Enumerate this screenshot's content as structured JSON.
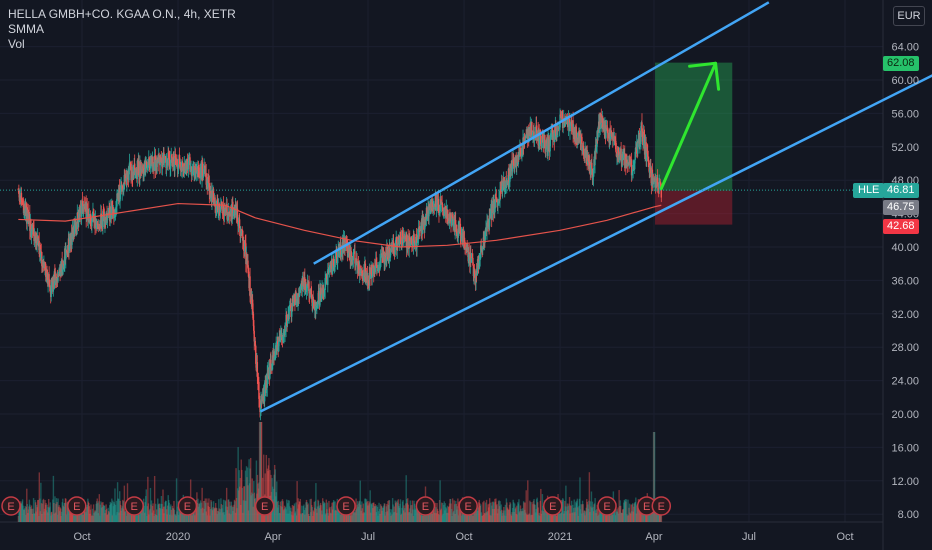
{
  "header": {
    "title": "HELLA GMBH+CO. KGAA O.N., 4h, XETR",
    "indicator_1": "SMMA",
    "indicator_2": "Vol",
    "currency": "EUR"
  },
  "price_tags": {
    "target": "62.08",
    "symbol": "HLE",
    "last": "46.81",
    "entry": "46.75",
    "stop": "42.68"
  },
  "colors": {
    "background": "#131722",
    "up": "#26a69a",
    "down": "#ef5350",
    "channel": "#42a5f5",
    "smma": "#e5534b",
    "arrow": "#2fe62f",
    "target_tag": "#26c26a",
    "stop_tag": "#f23645",
    "entry_tag": "#787b86"
  },
  "earnings_icon_label": "E",
  "chart_data": {
    "type": "candlestick",
    "title": "HELLA GMBH+CO. KGAA O.N., 4h, XETR",
    "ylabel": "EUR",
    "ylim": [
      6,
      70
    ],
    "y_ticks": [
      8,
      12,
      16,
      20,
      24,
      28,
      32,
      36,
      40,
      44,
      48,
      52,
      56,
      60,
      64
    ],
    "y_tick_labels": [
      "8.00",
      "12.00",
      "16.00",
      "20.00",
      "24.00",
      "28.00",
      "32.00",
      "36.00",
      "40.00",
      "44.00",
      "48.00",
      "52.00",
      "56.00",
      "60.00",
      "64.00"
    ],
    "x_tick_labels": [
      "Oct",
      "2020",
      "Apr",
      "Jul",
      "Oct",
      "2021",
      "Apr",
      "Jul",
      "Oct"
    ],
    "x_tick_dates": [
      "2019-10-01",
      "2020-01-01",
      "2020-04-01",
      "2020-07-01",
      "2020-10-01",
      "2021-01-01",
      "2021-04-01",
      "2021-07-01",
      "2021-10-01"
    ],
    "price_path": [
      [
        "2019-08-01",
        47.0
      ],
      [
        "2019-08-10",
        43.5
      ],
      [
        "2019-08-20",
        40.0
      ],
      [
        "2019-09-01",
        35.0
      ],
      [
        "2019-09-15",
        39.0
      ],
      [
        "2019-10-01",
        45.0
      ],
      [
        "2019-10-15",
        42.5
      ],
      [
        "2019-11-01",
        44.5
      ],
      [
        "2019-11-15",
        49.0
      ],
      [
        "2019-12-01",
        49.5
      ],
      [
        "2019-12-15",
        50.5
      ],
      [
        "2020-01-05",
        50.0
      ],
      [
        "2020-01-25",
        49.0
      ],
      [
        "2020-02-05",
        45.5
      ],
      [
        "2020-02-15",
        44.0
      ],
      [
        "2020-02-25",
        44.5
      ],
      [
        "2020-03-05",
        40.0
      ],
      [
        "2020-03-12",
        33.0
      ],
      [
        "2020-03-17",
        24.5
      ],
      [
        "2020-03-20",
        20.5
      ],
      [
        "2020-03-28",
        25.0
      ],
      [
        "2020-04-08",
        29.0
      ],
      [
        "2020-04-20",
        33.0
      ],
      [
        "2020-05-01",
        36.0
      ],
      [
        "2020-05-12",
        33.0
      ],
      [
        "2020-05-25",
        37.0
      ],
      [
        "2020-06-08",
        40.5
      ],
      [
        "2020-06-20",
        38.0
      ],
      [
        "2020-07-01",
        36.5
      ],
      [
        "2020-07-15",
        38.5
      ],
      [
        "2020-08-01",
        41.0
      ],
      [
        "2020-08-15",
        40.5
      ],
      [
        "2020-09-01",
        45.5
      ],
      [
        "2020-09-15",
        44.0
      ],
      [
        "2020-10-01",
        41.0
      ],
      [
        "2020-10-12",
        36.5
      ],
      [
        "2020-10-25",
        43.5
      ],
      [
        "2020-11-08",
        47.5
      ],
      [
        "2020-11-20",
        50.5
      ],
      [
        "2020-12-05",
        54.0
      ],
      [
        "2020-12-20",
        52.0
      ],
      [
        "2021-01-01",
        55.0
      ],
      [
        "2021-01-12",
        54.5
      ],
      [
        "2021-01-22",
        52.5
      ],
      [
        "2021-02-01",
        49.0
      ],
      [
        "2021-02-08",
        55.0
      ],
      [
        "2021-02-20",
        53.0
      ],
      [
        "2021-03-01",
        50.5
      ],
      [
        "2021-03-12",
        49.5
      ],
      [
        "2021-03-20",
        54.0
      ],
      [
        "2021-03-28",
        49.0
      ],
      [
        "2021-04-01",
        47.5
      ],
      [
        "2021-04-08",
        46.8
      ]
    ],
    "smma_path": [
      [
        "2019-08-01",
        43.3
      ],
      [
        "2019-09-15",
        43.1
      ],
      [
        "2019-11-01",
        44.0
      ],
      [
        "2020-01-01",
        45.2
      ],
      [
        "2020-02-15",
        45.0
      ],
      [
        "2020-03-15",
        43.5
      ],
      [
        "2020-05-01",
        42.0
      ],
      [
        "2020-06-15",
        40.8
      ],
      [
        "2020-08-01",
        40.0
      ],
      [
        "2020-09-15",
        40.2
      ],
      [
        "2020-11-01",
        40.8
      ],
      [
        "2021-01-01",
        42.0
      ],
      [
        "2021-02-15",
        43.2
      ],
      [
        "2021-04-01",
        44.8
      ],
      [
        "2021-04-08",
        45.0
      ]
    ],
    "channel_upper": [
      [
        "2020-05-10",
        38.0
      ],
      [
        "2021-07-20",
        69.3
      ]
    ],
    "channel_lower": [
      [
        "2020-03-20",
        20.3
      ],
      [
        "2021-04-08",
        46.8
      ],
      [
        "2021-12-31",
        61.0
      ]
    ],
    "long_position": {
      "start": "2021-04-02",
      "end": "2021-06-15",
      "entry": 46.75,
      "target": 62.08,
      "stop": 42.68
    },
    "arrow": {
      "from": [
        "2021-04-08",
        47.0
      ],
      "to": [
        "2021-05-30",
        62.0
      ]
    },
    "earnings_dates": [
      "2019-07-25",
      "2019-09-26",
      "2019-11-20",
      "2020-01-10",
      "2020-03-24",
      "2020-06-10",
      "2020-08-25",
      "2020-10-05",
      "2020-12-25",
      "2021-02-15",
      "2021-03-25",
      "2021-04-08"
    ],
    "volume_scale": "unlabeled"
  }
}
